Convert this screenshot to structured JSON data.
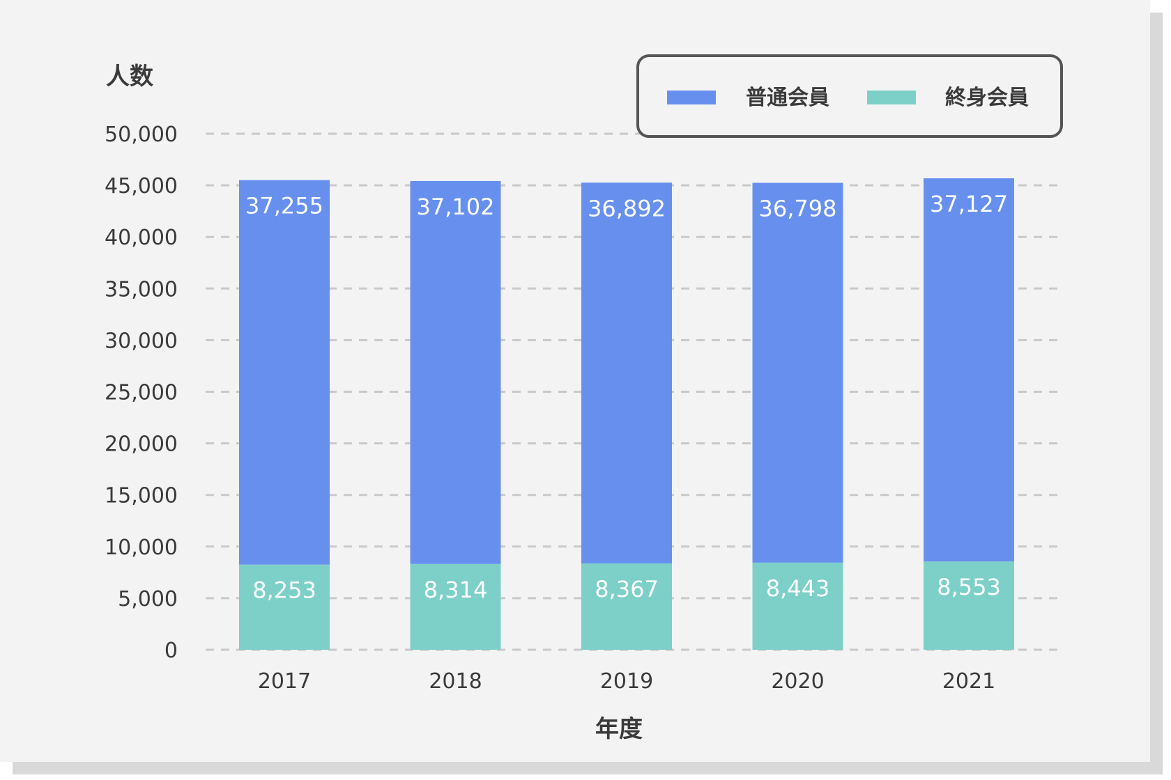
{
  "chart_data": {
    "type": "bar",
    "stacked": true,
    "categories": [
      "2017",
      "2018",
      "2019",
      "2020",
      "2021"
    ],
    "series": [
      {
        "name": "終身会員",
        "values": [
          8253,
          8314,
          8367,
          8443,
          8553
        ],
        "color": "#7dd0c8"
      },
      {
        "name": "普通会員",
        "values": [
          37255,
          37102,
          36892,
          36798,
          37127
        ],
        "color": "#6790ee"
      }
    ],
    "value_labels": {
      "終身会員": [
        "8,253",
        "8,314",
        "8,367",
        "8,443",
        "8,553"
      ],
      "普通会員": [
        "37,255",
        "37,102",
        "36,892",
        "36,798",
        "37,127"
      ]
    },
    "xlabel": "年度",
    "ylabel": "人数",
    "ylim": [
      0,
      50000
    ],
    "yticks": [
      0,
      5000,
      10000,
      15000,
      20000,
      25000,
      30000,
      35000,
      40000,
      45000,
      50000
    ],
    "ytick_labels": [
      "0",
      "5,000",
      "10,000",
      "15,000",
      "20,000",
      "25,000",
      "30,000",
      "35,000",
      "40,000",
      "45,000",
      "50,000"
    ],
    "grid": "horizontal-dashed",
    "legend": {
      "placement": "top-right",
      "items": [
        {
          "label": "普通会員",
          "color": "#6790ee"
        },
        {
          "label": "終身会員",
          "color": "#7dd0c8"
        }
      ]
    }
  }
}
